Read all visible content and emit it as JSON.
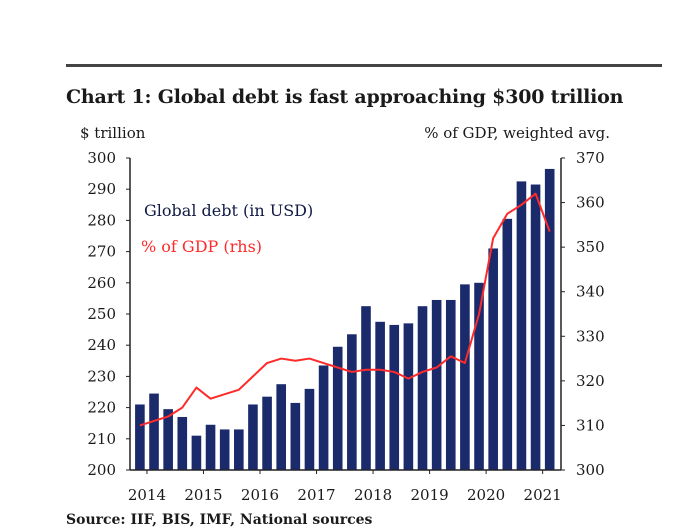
{
  "title": "Chart 1: Global debt is fast approaching $300 trillion",
  "source_note": "Source: IIF, BIS, IMF, National sources",
  "chart_data": {
    "type": "bar+line",
    "title": "Chart 1: Global debt is fast approaching $300 trillion",
    "left_axis_label": "$ trillion",
    "right_axis_label": "% of GDP, weighted avg.",
    "left_ylim": [
      200,
      300
    ],
    "right_ylim": [
      300,
      370
    ],
    "left_ticks": [
      200,
      210,
      220,
      230,
      240,
      250,
      260,
      270,
      280,
      290,
      300
    ],
    "right_ticks": [
      300,
      310,
      320,
      330,
      340,
      350,
      360,
      370
    ],
    "x_ticks": [
      "2014",
      "2015",
      "2016",
      "2017",
      "2018",
      "2019",
      "2020",
      "2021"
    ],
    "legend": [
      {
        "label": "Global debt (in USD)",
        "color": "#1b2a6b"
      },
      {
        "label": "% of GDP (rhs)",
        "color": "#ff2a2a"
      }
    ],
    "series": [
      {
        "name": "Global debt (in USD)",
        "type": "bar",
        "color": "#1b2a6b",
        "axis": "left",
        "x": [
          "2014Q1",
          "2014Q2",
          "2014Q3",
          "2014Q4",
          "2015Q1",
          "2015Q2",
          "2015Q3",
          "2015Q4",
          "2016Q1",
          "2016Q2",
          "2016Q3",
          "2016Q4",
          "2017Q1",
          "2017Q2",
          "2017Q3",
          "2017Q4",
          "2018Q1",
          "2018Q2",
          "2018Q3",
          "2018Q4",
          "2019Q1",
          "2019Q2",
          "2019Q3",
          "2019Q4",
          "2020Q1",
          "2020Q2",
          "2020Q3",
          "2020Q4",
          "2021Q1",
          "2021Q2"
        ],
        "values": [
          221,
          224.5,
          219.5,
          217,
          211,
          214.5,
          213,
          213,
          221,
          223.5,
          227.5,
          221.5,
          226,
          233.5,
          239.5,
          243.5,
          252.5,
          247.5,
          246.5,
          247,
          252.5,
          254.5,
          254.5,
          259.5,
          260,
          271,
          280.5,
          292.5,
          291.5,
          296.5
        ]
      },
      {
        "name": "% of GDP (rhs)",
        "type": "line",
        "color": "#ff2a2a",
        "axis": "right",
        "x": [
          "2014Q1",
          "2014Q2",
          "2014Q3",
          "2014Q4",
          "2015Q1",
          "2015Q2",
          "2015Q3",
          "2015Q4",
          "2016Q1",
          "2016Q2",
          "2016Q3",
          "2016Q4",
          "2017Q1",
          "2017Q2",
          "2017Q3",
          "2017Q4",
          "2018Q1",
          "2018Q2",
          "2018Q3",
          "2018Q4",
          "2019Q1",
          "2019Q2",
          "2019Q3",
          "2019Q4",
          "2020Q1",
          "2020Q2",
          "2020Q3",
          "2020Q4",
          "2021Q1",
          "2021Q2"
        ],
        "values": [
          310,
          311,
          312,
          314,
          318.5,
          316,
          317,
          318,
          321,
          324,
          325,
          324.5,
          325,
          324,
          323,
          322,
          322.5,
          322.5,
          322,
          320.5,
          322,
          323,
          325.5,
          324,
          335,
          352,
          357.5,
          359.5,
          362,
          353.5
        ]
      }
    ]
  }
}
